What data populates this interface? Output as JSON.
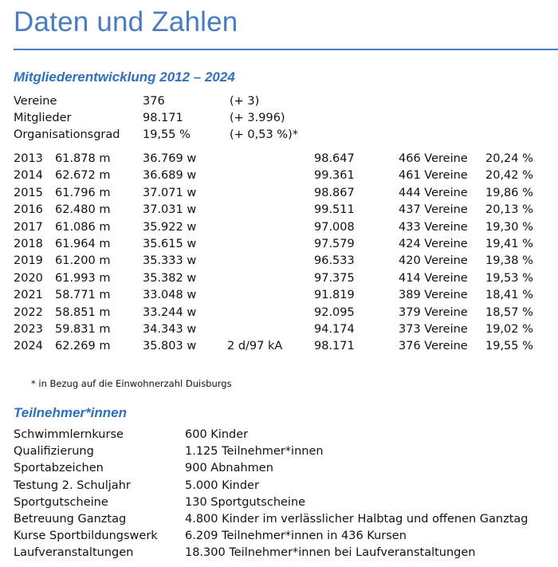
{
  "title": "Daten und Zahlen",
  "colors": {
    "title": "#4a7cbf",
    "heading": "#2f6fbf",
    "text": "#111111"
  },
  "members": {
    "heading": "Mitgliederentwicklung 2012 – 2024",
    "summary": [
      {
        "label": "Vereine",
        "value": "376",
        "change": "(+ 3)"
      },
      {
        "label": "Mitglieder",
        "value": "98.171",
        "change": "(+ 3.996)"
      },
      {
        "label": "Organisationsgrad",
        "value": "19,55 %",
        "change": "(+ 0,53 %)*"
      }
    ],
    "years": [
      {
        "year": "2013",
        "male": "61.878 m",
        "female": "36.769 w",
        "diverse": "",
        "total": "98.647",
        "clubs": "466 Vereine",
        "rate": "20,24 %"
      },
      {
        "year": "2014",
        "male": "62.672 m",
        "female": "36.689 w",
        "diverse": "",
        "total": "99.361",
        "clubs": "461 Vereine",
        "rate": "20,42 %"
      },
      {
        "year": "2015",
        "male": "61.796 m",
        "female": "37.071 w",
        "diverse": "",
        "total": "98.867",
        "clubs": "444 Vereine",
        "rate": "19,86 %"
      },
      {
        "year": "2016",
        "male": "62.480 m",
        "female": "37.031 w",
        "diverse": "",
        "total": "99.511",
        "clubs": "437 Vereine",
        "rate": "20,13 %"
      },
      {
        "year": "2017",
        "male": "61.086 m",
        "female": "35.922 w",
        "diverse": "",
        "total": "97.008",
        "clubs": "433 Vereine",
        "rate": "19,30 %"
      },
      {
        "year": "2018",
        "male": "61.964 m",
        "female": "35.615 w",
        "diverse": "",
        "total": "97.579",
        "clubs": "424 Vereine",
        "rate": "19,41 %"
      },
      {
        "year": "2019",
        "male": "61.200 m",
        "female": "35.333 w",
        "diverse": "",
        "total": "96.533",
        "clubs": "420 Vereine",
        "rate": "19,38 %"
      },
      {
        "year": "2020",
        "male": "61.993 m",
        "female": "35.382 w",
        "diverse": "",
        "total": "97.375",
        "clubs": "414 Vereine",
        "rate": "19,53 %"
      },
      {
        "year": "2021",
        "male": "58.771 m",
        "female": "33.048 w",
        "diverse": "",
        "total": "91.819",
        "clubs": "389 Vereine",
        "rate": "18,41 %"
      },
      {
        "year": "2022",
        "male": "58.851 m",
        "female": "33.244 w",
        "diverse": "",
        "total": "92.095",
        "clubs": "379 Vereine",
        "rate": "18,57 %"
      },
      {
        "year": "2023",
        "male": "59.831 m",
        "female": "34.343 w",
        "diverse": "",
        "total": "94.174",
        "clubs": "373 Vereine",
        "rate": "19,02 %"
      },
      {
        "year": "2024",
        "male": "62.269 m",
        "female": "35.803 w",
        "diverse": "2 d/97 kA",
        "total": "98.171",
        "clubs": "376 Vereine",
        "rate": "19,55 %"
      }
    ],
    "footnote": "* in Bezug auf die Einwohnerzahl Duisburgs"
  },
  "participants": {
    "heading": "Teilnehmer*innen",
    "items": [
      {
        "label": "Schwimmlernkurse",
        "value": "600 Kinder"
      },
      {
        "label": "Qualifizierung",
        "value": "1.125 Teilnehmer*innen"
      },
      {
        "label": "Sportabzeichen",
        "value": "900 Abnahmen"
      },
      {
        "label": "Testung 2. Schuljahr",
        "value": "5.000 Kinder"
      },
      {
        "label": "Sportgutscheine",
        "value": "130 Sportgutscheine"
      },
      {
        "label": "Betreuung Ganztag",
        "value": "4.800 Kinder im verlässlicher Halbtag und offenen Ganztag"
      },
      {
        "label": "Kurse Sportbildungswerk",
        "value": "6.209 Teilnehmer*innen in 436 Kursen"
      },
      {
        "label": "Laufveranstaltungen",
        "value": "18.300 Teilnehmer*innen bei Laufveranstaltungen"
      }
    ]
  }
}
